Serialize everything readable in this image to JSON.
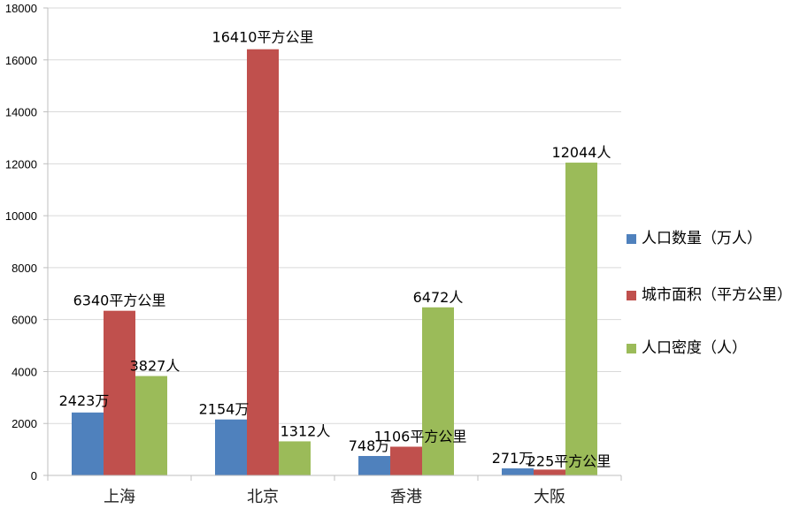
{
  "chart_data": {
    "type": "bar",
    "title": "",
    "xlabel": "",
    "ylabel": "",
    "ylim": [
      0,
      18000
    ],
    "yticks": [
      0,
      2000,
      4000,
      6000,
      8000,
      10000,
      12000,
      14000,
      16000,
      18000
    ],
    "grid": true,
    "legend_position": "right",
    "categories": [
      "上海",
      "北京",
      "香港",
      "大阪"
    ],
    "series": [
      {
        "name": "人口数量（万人）",
        "color": "#4F81BD",
        "values": [
          2423,
          2154,
          748,
          271
        ],
        "labels": [
          "2423万",
          "2154万",
          "748万",
          "271万"
        ]
      },
      {
        "name": "城市面积（平方公里）",
        "color": "#C0504D",
        "values": [
          6340,
          16410,
          1106,
          225
        ],
        "labels": [
          "6340平方公里",
          "16410平方公里",
          "1106平方公里",
          "225平方公里"
        ]
      },
      {
        "name": "人口密度（人）",
        "color": "#9BBB59",
        "values": [
          3827,
          1312,
          6472,
          12044
        ],
        "labels": [
          "3827人",
          "1312人",
          "6472人",
          "12044人"
        ]
      }
    ]
  },
  "legend": {
    "items": [
      {
        "label": "人口数量（万人）",
        "color": "#4F81BD"
      },
      {
        "label": "城市面积（平方公里）",
        "color": "#C0504D"
      },
      {
        "label": "人口密度（人）",
        "color": "#9BBB59"
      }
    ]
  }
}
